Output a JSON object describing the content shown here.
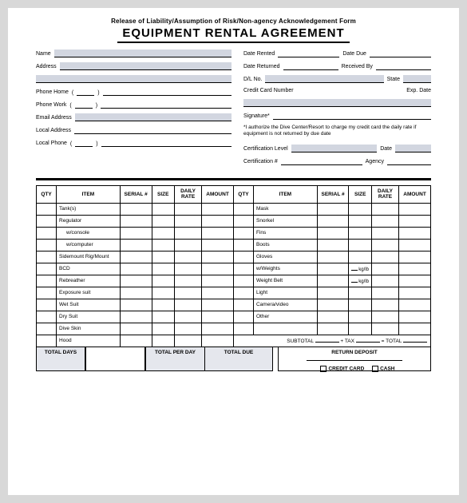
{
  "header": {
    "pre_title": "Release of Liability/Assumption of Risk/Non-agency Acknowledgement Form",
    "title": "EQUIPMENT RENTAL AGREEMENT"
  },
  "left_fields": {
    "name": "Name",
    "address": "Address",
    "phone_home": "Phone Home",
    "phone_work": "Phone  Work",
    "email": "Email Address",
    "local_address": "Local Address",
    "local_phone": "Local Phone"
  },
  "right_fields": {
    "date_rented": "Date Rented",
    "date_due": "Date Due",
    "date_returned": "Date Returned",
    "received_by": "Received By",
    "dl_no": "D/L No.",
    "state": "State",
    "cc_number": "Credit Card Number",
    "exp_date": "Exp. Date",
    "signature": "Signature*",
    "auth_note": "*I authorize the Dive Center/Resort to charge my credit card the daily rate if equipment is not returned by due date",
    "cert_level": "Certification Level",
    "date": "Date",
    "cert_no": "Certification #",
    "agency": "Agency"
  },
  "table": {
    "headers": {
      "qty": "QTY",
      "item": "ITEM",
      "serial": "SERIAL #",
      "size": "SIZE",
      "daily_rate": "DAILY RATE",
      "amount": "AMOUNT"
    },
    "left_items": [
      {
        "label": "Tank(s)",
        "indent": false
      },
      {
        "label": "Regulator",
        "indent": false
      },
      {
        "label": "w/console",
        "indent": true
      },
      {
        "label": "w/computer",
        "indent": true
      },
      {
        "label": "Sidemount Rig/Mount",
        "indent": false
      },
      {
        "label": "BCD",
        "indent": false
      },
      {
        "label": "Rebreather",
        "indent": false
      },
      {
        "label": "Exposure suit",
        "indent": false
      },
      {
        "label": "Wet Suit",
        "indent": false
      },
      {
        "label": "Dry Suit",
        "indent": false
      },
      {
        "label": "Dive Skin",
        "indent": false
      },
      {
        "label": "Hood",
        "indent": false
      }
    ],
    "right_items": [
      {
        "label": "Mask",
        "size": ""
      },
      {
        "label": "Snorkel",
        "size": ""
      },
      {
        "label": "Fins",
        "size": ""
      },
      {
        "label": "Boots",
        "size": ""
      },
      {
        "label": "Gloves",
        "size": ""
      },
      {
        "label": "w/Weights",
        "size": "kg/lb"
      },
      {
        "label": "Weight Belt",
        "size": "kg/lb"
      },
      {
        "label": "Light",
        "size": ""
      },
      {
        "label": "Camera/video",
        "size": ""
      },
      {
        "label": "Other",
        "size": ""
      },
      {
        "label": "",
        "size": ""
      }
    ],
    "subtotal": {
      "subtotal": "SUBTOTAL",
      "tax": "+  TAX",
      "total": "=  TOTAL"
    }
  },
  "footer": {
    "total_days": "TOTAL DAYS",
    "total_per_day": "TOTAL PER DAY",
    "total_due": "TOTAL DUE",
    "return_deposit": "RETURN DEPOSIT",
    "credit_card": "CREDIT CARD",
    "cash": "CASH"
  }
}
